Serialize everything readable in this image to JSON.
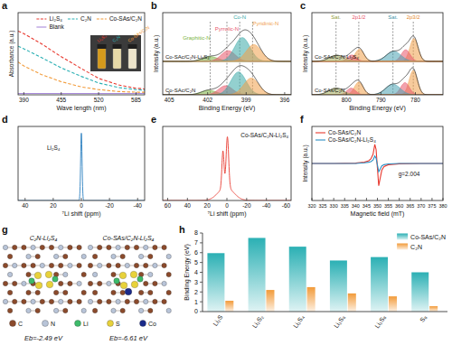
{
  "chart_data": [
    {
      "panel": "a",
      "type": "line",
      "x_label": "Wave length (nm)",
      "y_label": "Absorbance (a.u.)",
      "x": [
        380,
        390,
        420,
        455,
        490,
        520,
        555,
        585,
        600
      ],
      "series": [
        {
          "name": "Li₂S₄",
          "color": "#e8392f",
          "line_style": "dashed",
          "values": [
            0.97,
            0.93,
            0.78,
            0.58,
            0.4,
            0.25,
            0.15,
            0.1,
            0.09
          ]
        },
        {
          "name": "C₂N",
          "color": "#2bb0b4",
          "line_style": "dashed",
          "values": [
            0.74,
            0.7,
            0.57,
            0.41,
            0.28,
            0.18,
            0.11,
            0.08,
            0.07
          ]
        },
        {
          "name": "Co-SAs/C₂N",
          "color": "#f29b3a",
          "line_style": "dashed",
          "values": [
            0.5,
            0.44,
            0.31,
            0.2,
            0.12,
            0.08,
            0.05,
            0.04,
            0.04
          ]
        },
        {
          "name": "Blank",
          "color": "#a98bdb",
          "line_style": "solid",
          "values": [
            0.02,
            0.02,
            0.02,
            0.02,
            0.02,
            0.02,
            0.02,
            0.02,
            0.02
          ]
        }
      ],
      "xlim": [
        380,
        600
      ],
      "xticks": [
        390,
        455,
        520,
        585
      ],
      "ylim": [
        0,
        1.25
      ],
      "tick_labels": "x",
      "legend": "upper right",
      "inset_labels": [
        "Li₂S₄",
        "C₂N",
        "Co-SAs/C₂N"
      ]
    },
    {
      "panel": "b",
      "type": "xps",
      "x_label": "Binding Energy (eV)",
      "y_label": "Intensity (a.u.)",
      "xlim": [
        405.5,
        395.5
      ],
      "xticks": [
        405,
        402,
        399,
        396
      ],
      "ylim": [
        0,
        2.7
      ],
      "tick_labels": "x",
      "components": [
        {
          "name": "Graphitic-N",
          "color": "#7cb342",
          "center": 401.8
        },
        {
          "name": "Pyrrolic-N",
          "color": "#e8566a",
          "center": 400.5
        },
        {
          "name": "Co-N",
          "color": "#3aa9a8",
          "center": 399.5
        },
        {
          "name": "Pyridinic-N",
          "color": "#f0a04b",
          "center": 398.5
        }
      ],
      "spectra": [
        {
          "name": "Co-SAc/C₂N-Li₂S₄",
          "peaks": [
            {
              "center": 401.8,
              "height": 0.16,
              "fwhm": 1.4
            },
            {
              "center": 400.4,
              "height": 0.35,
              "fwhm": 1.3
            },
            {
              "center": 399.3,
              "height": 0.78,
              "fwhm": 1.4
            },
            {
              "center": 398.4,
              "height": 0.55,
              "fwhm": 1.4
            }
          ]
        },
        {
          "name": "Co-SAc/C₂N",
          "peaks": [
            {
              "center": 401.9,
              "height": 0.15,
              "fwhm": 1.4
            },
            {
              "center": 400.6,
              "height": 0.3,
              "fwhm": 1.3
            },
            {
              "center": 399.6,
              "height": 0.75,
              "fwhm": 1.4
            },
            {
              "center": 398.6,
              "height": 0.55,
              "fwhm": 1.4
            }
          ]
        }
      ]
    },
    {
      "panel": "c",
      "type": "xps",
      "x_label": "Binding Energy (eV)",
      "y_label": "Intensity (a.u.)",
      "xlim": [
        810,
        772
      ],
      "xticks": [
        800,
        790,
        780
      ],
      "ylim": [
        0,
        2.7
      ],
      "tick_labels": "x",
      "annotations": [
        {
          "text": "Sat.",
          "x": 803,
          "color": "#8f9e3c"
        },
        {
          "text": "2p1/2",
          "x": 796.4,
          "color": "#e8566a"
        },
        {
          "text": "Sat.",
          "x": 786.5,
          "color": "#3f93a8"
        },
        {
          "text": "2p3/2",
          "x": 780.6,
          "color": "#e68a2e"
        }
      ],
      "spectra": [
        {
          "name": "Co-SAs/C₂N-Li₂S₄",
          "peaks": [
            {
              "center": 780.4,
              "height": 0.75,
              "fwhm": 2.8,
              "color": "#f0a04b"
            },
            {
              "center": 782.8,
              "height": 0.38,
              "fwhm": 3,
              "color": "#e8566a"
            },
            {
              "center": 786.3,
              "height": 0.33,
              "fwhm": 5,
              "color": "#4aa3b3"
            },
            {
              "center": 796.2,
              "height": 0.4,
              "fwhm": 3,
              "color": "#f0a04b"
            },
            {
              "center": 798.4,
              "height": 0.21,
              "fwhm": 3,
              "color": "#e8566a"
            },
            {
              "center": 802.8,
              "height": 0.2,
              "fwhm": 5,
              "color": "#a8b060"
            }
          ]
        },
        {
          "name": "Co-SAs/C₂N",
          "peaks": [
            {
              "center": 780.6,
              "height": 0.8,
              "fwhm": 2.8,
              "color": "#f0a04b"
            },
            {
              "center": 783,
              "height": 0.4,
              "fwhm": 3,
              "color": "#e8566a"
            },
            {
              "center": 786.5,
              "height": 0.35,
              "fwhm": 5,
              "color": "#4aa3b3"
            },
            {
              "center": 796.4,
              "height": 0.42,
              "fwhm": 3,
              "color": "#f0a04b"
            },
            {
              "center": 798.6,
              "height": 0.22,
              "fwhm": 3,
              "color": "#e8566a"
            },
            {
              "center": 803,
              "height": 0.22,
              "fwhm": 5,
              "color": "#a8b060"
            }
          ]
        }
      ]
    },
    {
      "panel": "d",
      "type": "nmr",
      "x_label": "⁷Li shift (ppm)",
      "xlim": [
        45,
        -45
      ],
      "xticks": [
        40,
        20,
        0,
        -20,
        -40
      ],
      "ylim": [
        0,
        1.1
      ],
      "tick_labels": "x",
      "series": [
        {
          "name": "Li₂S₄",
          "color": "#2a7fc0",
          "peaks": [
            {
              "center": 0,
              "height": 1,
              "fwhm": 1.2
            }
          ]
        }
      ]
    },
    {
      "panel": "e",
      "type": "nmr",
      "x_label": "⁷Li shift (ppm)",
      "xlim": [
        65,
        -65
      ],
      "xticks": [
        60,
        40,
        20,
        0,
        -20,
        -40,
        -60
      ],
      "ylim": [
        0,
        1.1
      ],
      "tick_labels": "x",
      "series": [
        {
          "name": "Co-SAs/C₂N-Li₂S₄",
          "color": "#e8392f",
          "peaks": [
            {
              "center": 4,
              "height": 0.55,
              "fwhm": 2.5
            },
            {
              "center": -0.5,
              "height": 0.75,
              "fwhm": 3
            },
            {
              "center": 1,
              "height": 0.2,
              "fwhm": 18
            }
          ]
        }
      ]
    },
    {
      "panel": "f",
      "type": "line",
      "x_label": "Magnetic field (mT)",
      "y_label": "Intensity (a.u.)",
      "x": [
        320,
        330,
        340,
        344,
        346,
        347,
        348,
        348.8,
        349.4,
        350,
        350.6,
        351.2,
        352,
        353,
        355,
        360,
        370,
        380
      ],
      "series": [
        {
          "name": "Co-SAs/C₂N",
          "color": "#e8392f",
          "line_style": "solid",
          "values": [
            0,
            0,
            0.01,
            0.04,
            0.09,
            0.15,
            0.3,
            0.62,
            0.45,
            -0.15,
            -0.72,
            -0.5,
            -0.22,
            -0.1,
            -0.04,
            -0.01,
            0,
            0
          ]
        },
        {
          "name": "Co-SAs/C₂N-Li₂S₄",
          "color": "#2a8fc4",
          "line_style": "solid",
          "values": [
            0,
            0,
            0,
            0.02,
            0.04,
            0.06,
            0.11,
            0.24,
            0.17,
            -0.05,
            -0.27,
            -0.19,
            -0.08,
            -0.04,
            -0.015,
            0,
            0,
            0
          ]
        }
      ],
      "xlim": [
        320,
        380
      ],
      "xticks": [
        320,
        325,
        330,
        335,
        340,
        345,
        350,
        355,
        360,
        365,
        370,
        375,
        380
      ],
      "ylim": [
        -1.2,
        1.2
      ],
      "tick_labels": "x",
      "legend": "upper left",
      "annotation": "g=2.004"
    },
    {
      "panel": "g",
      "type": "structure",
      "structures": [
        {
          "label": "C₂N-Li₂S₄",
          "energy_label": "Eb=-2.49 eV"
        },
        {
          "label": "Co-SAs/C₂N-Li₂S₄",
          "energy_label": "Eb=-6.61 eV"
        }
      ],
      "atoms": [
        {
          "name": "C",
          "color": "#8b4a2b"
        },
        {
          "name": "N",
          "color": "#b8c4d8"
        },
        {
          "name": "Li",
          "color": "#3dbb6a"
        },
        {
          "name": "S",
          "color": "#e8d23a"
        },
        {
          "name": "Co",
          "color": "#1a2a8a"
        }
      ]
    },
    {
      "panel": "h",
      "type": "bar",
      "y_label": "Binding Energy (eV)",
      "categories": [
        "Li₂S",
        "Li₂S₂",
        "Li₂S₄",
        "Li₂S₆",
        "Li₂S₈",
        "S₈"
      ],
      "series": [
        {
          "name": "Co-SAs/C₂N",
          "color": "#2bb0b4",
          "values": [
            5.95,
            7.5,
            6.61,
            5.2,
            5.55,
            4.0
          ]
        },
        {
          "name": "C₂N",
          "color": "#f29b3a",
          "values": [
            1.1,
            2.2,
            2.49,
            1.85,
            1.55,
            0.55
          ]
        }
      ],
      "ylim": [
        0,
        8
      ],
      "yticks": [
        0,
        1,
        2,
        3,
        4,
        5,
        6,
        7,
        8
      ],
      "legend": "upper right"
    }
  ]
}
